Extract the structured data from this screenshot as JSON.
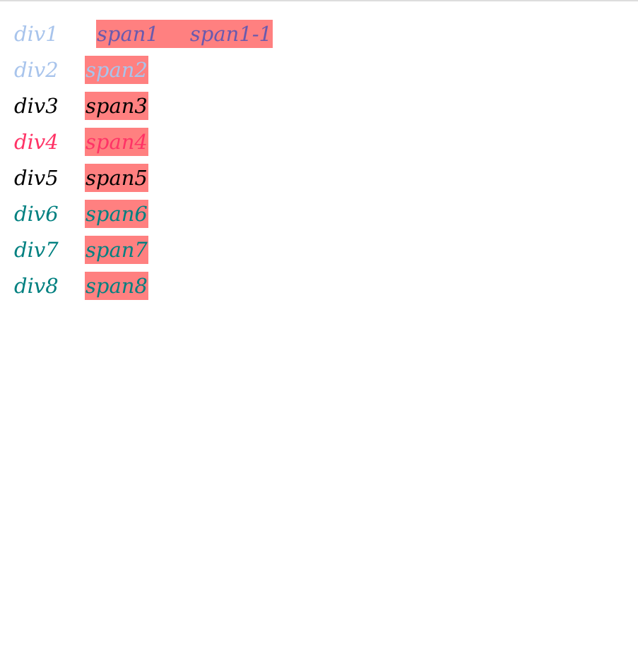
{
  "colors": {
    "span_bg": "#ff8080",
    "light_blue": "#a8c4ec",
    "purple": "#6a5aad",
    "black": "#000000",
    "pink": "#ff3366",
    "teal": "#008080"
  },
  "rows": [
    {
      "div": "div1",
      "spans": [
        "span1",
        "span1-1"
      ],
      "div_color": "#a8c4ec",
      "span_color": "#6a5aad"
    },
    {
      "div": "div2",
      "spans": [
        "span2"
      ],
      "div_color": "#a8c4ec",
      "span_color": "#a8c4ec"
    },
    {
      "div": "div3",
      "spans": [
        "span3"
      ],
      "div_color": "#000000",
      "span_color": "#000000"
    },
    {
      "div": "div4",
      "spans": [
        "span4"
      ],
      "div_color": "#ff3366",
      "span_color": "#ff3366"
    },
    {
      "div": "div5",
      "spans": [
        "span5"
      ],
      "div_color": "#000000",
      "span_color": "#000000"
    },
    {
      "div": "div6",
      "spans": [
        "span6"
      ],
      "div_color": "#008080",
      "span_color": "#008080"
    },
    {
      "div": "div7",
      "spans": [
        "span7"
      ],
      "div_color": "#008080",
      "span_color": "#008080"
    },
    {
      "div": "div8",
      "spans": [
        "span8"
      ],
      "div_color": "#008080",
      "span_color": "#008080"
    }
  ]
}
